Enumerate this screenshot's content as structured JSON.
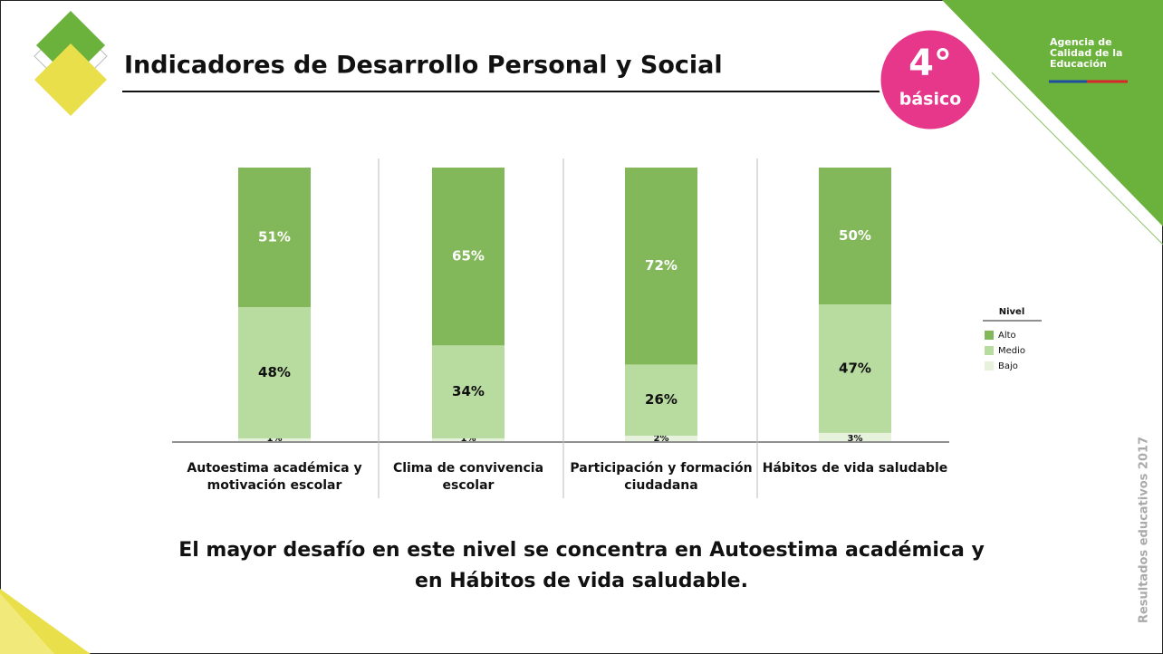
{
  "slide": {
    "title": "Indicadores de Desarrollo Personal y Social",
    "badge_number": "4°",
    "badge_text": "básico",
    "logo_lines": [
      "Agencia de",
      "Calidad de la",
      "Educación"
    ],
    "side_text": "Resultados educativos 2017",
    "conclusion_lines": [
      "El mayor desafío en este nivel se concentra en Autoestima académica y",
      "en Hábitos de vida saludable."
    ]
  },
  "chart_data": {
    "type": "stacked_bar",
    "categories": [
      "Autoestima académica y motivación escolar",
      "Clima de convivencia escolar",
      "Participación y formación ciudadana",
      "Hábitos de vida saludable"
    ],
    "ylim": [
      0,
      100
    ],
    "legend_title": "Nivel",
    "legend_position": "right",
    "series": [
      {
        "name": "Alto",
        "color": "#82b75a",
        "values": [
          51,
          65,
          72,
          50
        ],
        "value_labels": [
          "51%",
          "65%",
          "72%",
          "50%"
        ]
      },
      {
        "name": "Medio",
        "color": "#b8dba0",
        "values": [
          48,
          34,
          26,
          47
        ],
        "value_labels": [
          "48%",
          "34%",
          "26%",
          "47%"
        ]
      },
      {
        "name": "Bajo",
        "color": "#e6f2dc",
        "values": [
          1,
          1,
          2,
          3
        ],
        "value_labels": [
          "1%",
          "1%",
          "2%",
          "3%"
        ]
      }
    ]
  }
}
